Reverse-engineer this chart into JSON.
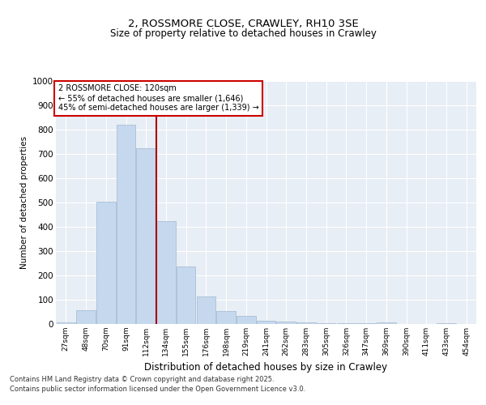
{
  "title1": "2, ROSSMORE CLOSE, CRAWLEY, RH10 3SE",
  "title2": "Size of property relative to detached houses in Crawley",
  "xlabel": "Distribution of detached houses by size in Crawley",
  "ylabel": "Number of detached properties",
  "categories": [
    "27sqm",
    "48sqm",
    "70sqm",
    "91sqm",
    "112sqm",
    "134sqm",
    "155sqm",
    "176sqm",
    "198sqm",
    "219sqm",
    "241sqm",
    "262sqm",
    "283sqm",
    "305sqm",
    "326sqm",
    "347sqm",
    "369sqm",
    "390sqm",
    "411sqm",
    "433sqm",
    "454sqm"
  ],
  "values": [
    8,
    58,
    505,
    820,
    725,
    425,
    238,
    115,
    55,
    35,
    12,
    10,
    8,
    5,
    3,
    2,
    8,
    0,
    0,
    5,
    0
  ],
  "bar_color": "#c5d8ed",
  "bar_edge_color": "#a0b8d0",
  "bg_color": "#e8eef5",
  "grid_color": "#ffffff",
  "vline_color": "#aa0000",
  "annotation_title": "2 ROSSMORE CLOSE: 120sqm",
  "annotation_line1": "← 55% of detached houses are smaller (1,646)",
  "annotation_line2": "45% of semi-detached houses are larger (1,339) →",
  "annotation_box_color": "#cc0000",
  "ylim": [
    0,
    1000
  ],
  "yticks": [
    0,
    100,
    200,
    300,
    400,
    500,
    600,
    700,
    800,
    900,
    1000
  ],
  "footnote1": "Contains HM Land Registry data © Crown copyright and database right 2025.",
  "footnote2": "Contains public sector information licensed under the Open Government Licence v3.0."
}
